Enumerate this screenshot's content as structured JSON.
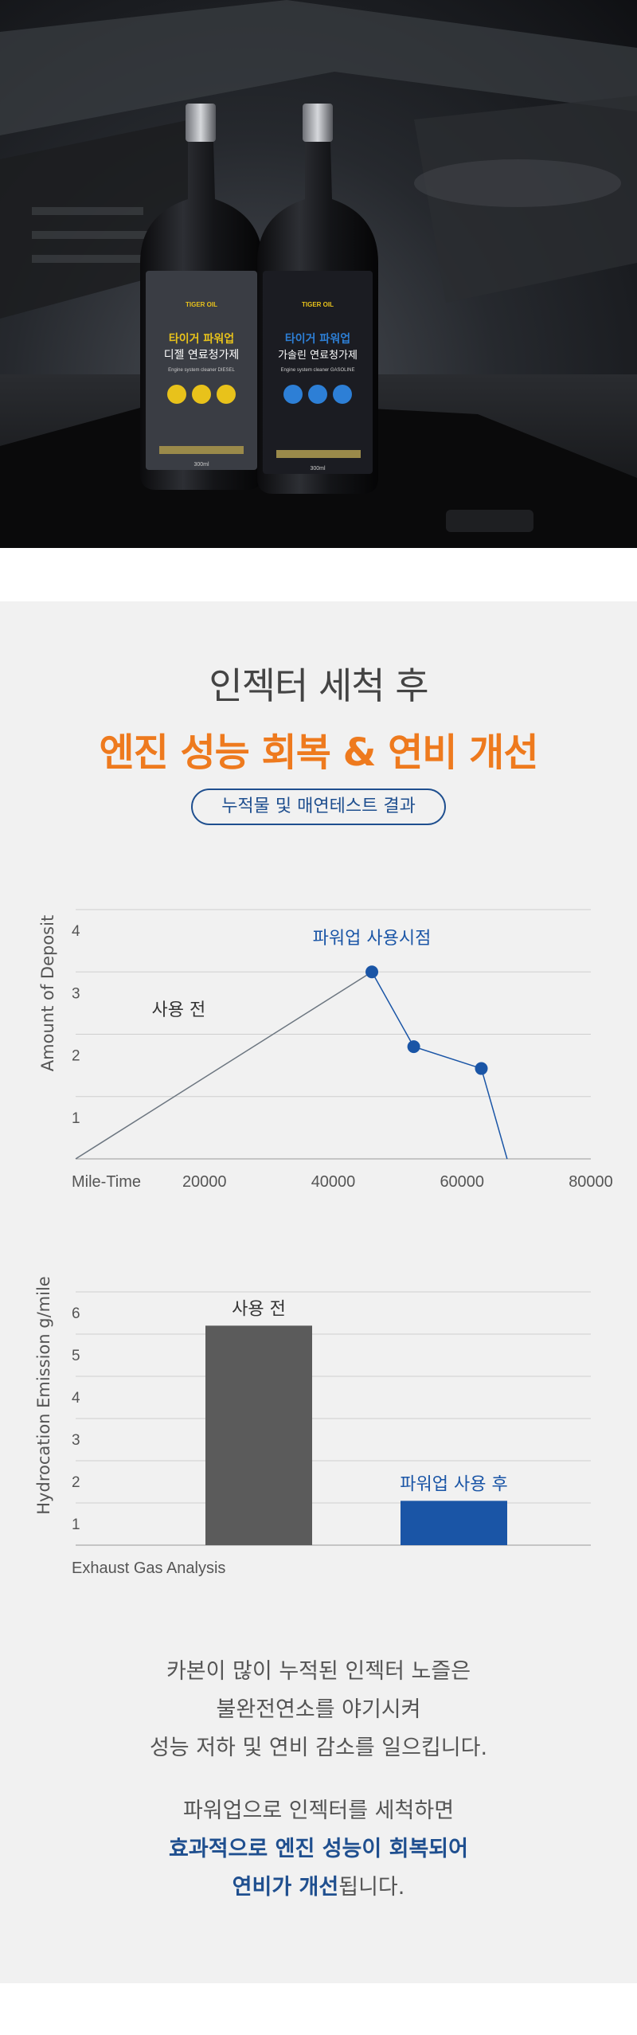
{
  "hero": {
    "products": [
      {
        "brand": "TIGER OIL",
        "name_line1": "타이거 파워업",
        "name_line2": "디젤 연료청가제",
        "sub": "Engine system cleaner DIESEL",
        "volume": "300ml",
        "accent": "#e8c21b"
      },
      {
        "brand": "TIGER OIL",
        "name_line1": "타이거 파워업",
        "name_line2": "가솔린 연료청가제",
        "sub": "Engine system cleaner GASOLINE",
        "volume": "300ml",
        "accent": "#2d7fd6"
      }
    ]
  },
  "heading": {
    "line1": "인젝터 세척 후",
    "line2": "엔진 성능 회복 & 연비 개선",
    "pill": "누적물 및 매연테스트 결과"
  },
  "colors": {
    "orange": "#ee7a1e",
    "blue": "#1f4f8f",
    "bar_gray": "#5b5b5b",
    "bar_blue": "#1a55a6"
  },
  "chart_data": [
    {
      "type": "line",
      "ylabel": "Amount of Deposit",
      "xlabel": "Mile-Time",
      "x_ticks": [
        20000,
        40000,
        60000,
        80000
      ],
      "y_ticks": [
        1,
        2,
        3,
        4
      ],
      "xlim": [
        0,
        80000
      ],
      "ylim": [
        0,
        4
      ],
      "series": [
        {
          "label": "사용 전",
          "points": [
            [
              0,
              0
            ],
            [
              46000,
              3
            ]
          ],
          "color": "#6c7680"
        },
        {
          "label": "파워업 사용시점",
          "points": [
            [
              46000,
              3
            ],
            [
              52500,
              1.8
            ],
            [
              63000,
              1.45
            ],
            [
              67000,
              0
            ]
          ],
          "markers": [
            [
              46000,
              3
            ],
            [
              52500,
              1.8
            ],
            [
              63000,
              1.45
            ]
          ],
          "color": "#1a55a6"
        }
      ]
    },
    {
      "type": "bar",
      "ylabel": "Hydrocation Emission g/mile",
      "xlabel": "Exhaust Gas Analysis",
      "y_ticks": [
        1,
        2,
        3,
        4,
        5,
        6
      ],
      "ylim": [
        0,
        6
      ],
      "categories": [
        "사용 전",
        "파워업 사용 후"
      ],
      "values": [
        5.2,
        1.05
      ],
      "colors": [
        "#5b5b5b",
        "#1a55a6"
      ]
    }
  ],
  "body": {
    "p1": [
      "카본이 많이 누적된 인젝터 노즐은",
      "불완전연소를 야기시켜",
      "성능 저하 및 연비 감소를 일으킵니다."
    ],
    "p2_line1": "파워업으로 인젝터를 세척하면",
    "p2_line2": "효과적으로 엔진 성능이 회복되어",
    "p2_line3_em": "연비가 개선",
    "p2_line3_rest": "됩니다."
  }
}
